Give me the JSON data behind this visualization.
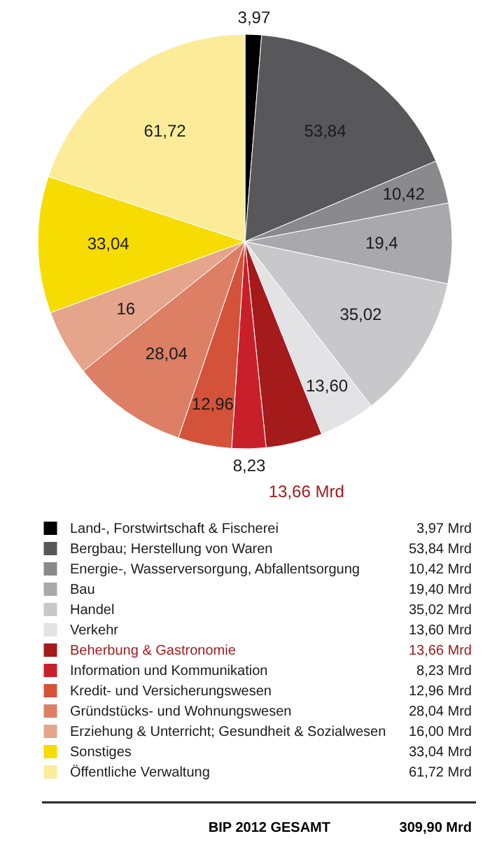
{
  "chart_data": {
    "type": "pie",
    "categories": [
      "Land-, Forstwirtschaft & Fischerei",
      "Bergbau; Herstellung von Waren",
      "Energie-, Wasserversorgung, Abfallentsorgung",
      "Bau",
      "Handel",
      "Verkehr",
      "Beherbung & Gastronomie",
      "Information und Kommunikation",
      "Kredit- und Versicherungswesen",
      "Gründstücks- und Wohnungswesen",
      "Erziehung & Unterricht; Gesundheit & Sozialwesen",
      "Sonstiges",
      "Öffentliche Verwaltung"
    ],
    "values": [
      3.97,
      53.84,
      10.42,
      19.4,
      35.02,
      13.6,
      13.66,
      8.23,
      12.96,
      28.04,
      16,
      33.04,
      61.72
    ],
    "colors": [
      "#000000",
      "#58585a",
      "#8a8a8c",
      "#a9a9ab",
      "#c8c8ca",
      "#e3e3e5",
      "#a51a1a",
      "#c8202a",
      "#d4523a",
      "#dc7f64",
      "#e4a58c",
      "#f6dc00",
      "#fcec9a"
    ],
    "legend": "bottom",
    "value_labels": [
      "3,97",
      "53,84",
      "10,42",
      "19,4",
      "35,02",
      "13,60",
      "13,66 Mrd",
      "8,23",
      "12,96",
      "28,04",
      "16",
      "33,04",
      "61,72"
    ],
    "annotations": [
      {
        "text": "3,97 Mrd",
        "x": "Land-, Forstwirtschaft & Fischerei"
      },
      {
        "text": "53,84 Mrd",
        "x": "Bergbau; Herstellung von Waren"
      },
      {
        "text": "10,42 Mrd",
        "x": "Energie-, Wasserversorgung, Abfallentsorgung"
      },
      {
        "text": "19,40 Mrd",
        "x": "Bau"
      },
      {
        "text": "35,02 Mrd",
        "x": "Handel"
      },
      {
        "text": "13,60 Mrd",
        "x": "Verkehr"
      },
      {
        "text": "13,66 Mrd",
        "x": "Beherbung & Gastronomie"
      },
      {
        "text": "8,23 Mrd",
        "x": "Information und Kommunikation"
      },
      {
        "text": "12,96 Mrd",
        "x": "Kredit- und Versicherungswesen"
      },
      {
        "text": "28,04 Mrd",
        "x": "Gründstücks- und Wohnungswesen"
      },
      {
        "text": "16,00 Mrd",
        "x": "Erziehung & Unterricht; Gesundheit & Sozialwesen"
      },
      {
        "text": "33,04 Mrd",
        "x": "Sonstiges"
      },
      {
        "text": "61,72 Mrd",
        "x": "Öffentliche Verwaltung"
      },
      "BIP 2012 GESAMT",
      "309,90 Mrd"
    ]
  }
}
